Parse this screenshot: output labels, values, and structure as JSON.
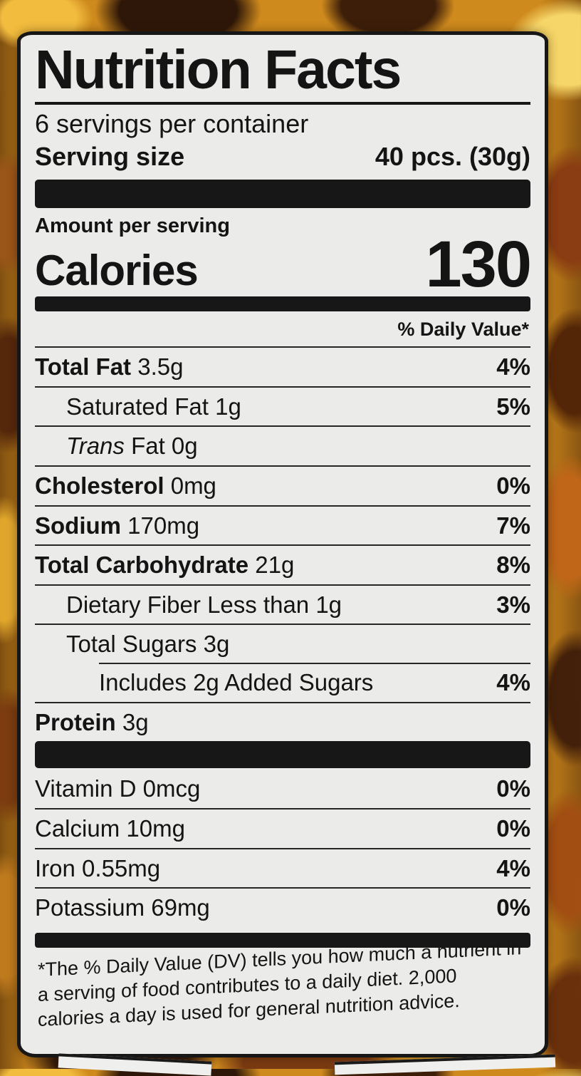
{
  "label": {
    "title": "Nutrition Facts",
    "servings_per_container": "6 servings per container",
    "serving_size_label": "Serving size",
    "serving_size_value": "40 pcs. (30g)",
    "amount_per_serving": "Amount per serving",
    "calories_label": "Calories",
    "calories_value": "130",
    "daily_value_header": "% Daily Value*",
    "footnote": "*The % Daily Value (DV) tells you how much a nutrient in a serving of food contributes to a daily diet. 2,000 calories a day is used for general nutrition advice."
  },
  "nutrients": [
    {
      "name": "Total Fat",
      "amount": "3.5g",
      "dv": "4%"
    },
    {
      "name": "Saturated Fat",
      "amount": "1g",
      "dv": "5%"
    },
    {
      "name": "Trans",
      "amount": "Fat 0g",
      "dv": ""
    },
    {
      "name": "Cholesterol",
      "amount": "0mg",
      "dv": "0%"
    },
    {
      "name": "Sodium",
      "amount": "170mg",
      "dv": "7%"
    },
    {
      "name": "Total Carbohydrate",
      "amount": "21g",
      "dv": "8%"
    },
    {
      "name": "Dietary Fiber",
      "amount": "Less than 1g",
      "dv": "3%"
    },
    {
      "name": "Total Sugars",
      "amount": "3g",
      "dv": ""
    },
    {
      "name": "Includes 2g Added Sugars",
      "amount": "",
      "dv": "4%"
    },
    {
      "name": "Protein",
      "amount": "3g",
      "dv": ""
    }
  ],
  "micronutrients": [
    {
      "name": "Vitamin D",
      "amount": "0mcg",
      "dv": "0%"
    },
    {
      "name": "Calcium",
      "amount": "10mg",
      "dv": "0%"
    },
    {
      "name": "Iron",
      "amount": "0.55mg",
      "dv": "4%"
    },
    {
      "name": "Potassium",
      "amount": "69mg",
      "dv": "0%"
    }
  ],
  "colors": {
    "label_background": "#ebebe9",
    "ink": "#141414",
    "background_base": "#cf8a1d"
  }
}
